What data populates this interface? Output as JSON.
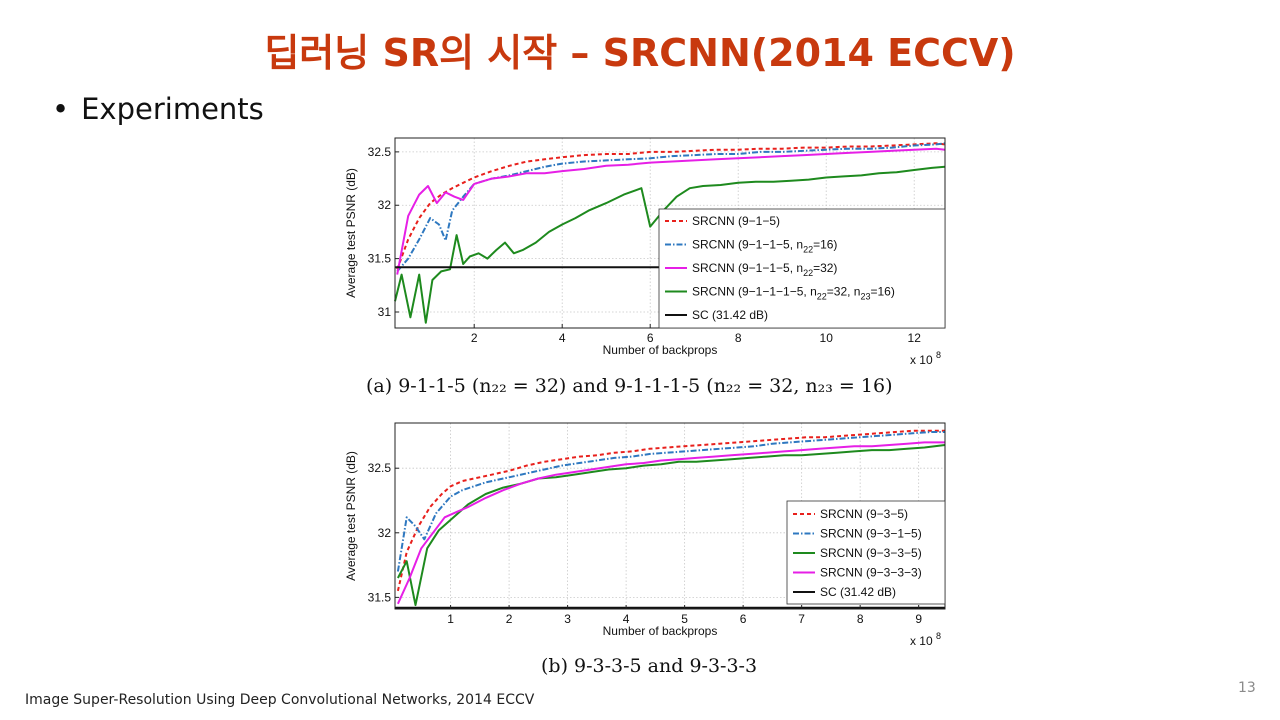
{
  "slide": {
    "title": "딥러닝 SR의 시작 – SRCNN(2014 ECCV)",
    "bullet": "Experiments",
    "footer": "Image Super-Resolution Using Deep Convolutional Networks, 2014 ECCV",
    "page_number": "13"
  },
  "chart_data": [
    {
      "type": "line",
      "caption": "(a) 9-1-1-5 (n₂₂ = 32) and 9-1-1-1-5 (n₂₂ = 32, n₂₃ = 16)",
      "xlabel": "Number of backprops",
      "x_multiplier": "x 10",
      "x_multiplier_exp": "8",
      "ylabel": "Average test PSNR (dB)",
      "xlim": [
        0.2,
        12.7
      ],
      "ylim": [
        30.85,
        32.63
      ],
      "xticks": [
        2,
        4,
        6,
        8,
        10,
        12
      ],
      "yticks": [
        31,
        31.5,
        32,
        32.5
      ],
      "grid": true,
      "legend_position": "right",
      "series": [
        {
          "name": "SRCNN (9−1−5)",
          "legend_label": "SRCNN (9−1−5)",
          "color": "#e8201c",
          "dash": "4,3",
          "x": [
            0.25,
            0.5,
            0.75,
            1.0,
            1.25,
            1.5,
            1.75,
            2.0,
            2.4,
            2.8,
            3.2,
            3.6,
            4.0,
            4.5,
            5.0,
            5.5,
            6.0,
            6.5,
            7.0,
            7.5,
            8.0,
            8.5,
            9.0,
            9.5,
            10.0,
            10.5,
            11.0,
            11.5,
            12.0,
            12.5,
            12.7
          ],
          "values": [
            31.4,
            31.68,
            31.88,
            32.02,
            32.1,
            32.16,
            32.21,
            32.26,
            32.32,
            32.37,
            32.41,
            32.43,
            32.45,
            32.47,
            32.48,
            32.48,
            32.5,
            32.5,
            32.51,
            32.52,
            32.52,
            32.53,
            32.53,
            32.54,
            32.54,
            32.55,
            32.55,
            32.56,
            32.57,
            32.58,
            32.57
          ]
        },
        {
          "name": "SRCNN (9−1−1−5, n22=16)",
          "legend_label": "SRCNN (9−1−1−5, n",
          "legend_sub1": "22",
          "legend_tail1": "=16)",
          "color": "#2e78c0",
          "dash": "6,2,1.5,2",
          "x": [
            0.25,
            0.5,
            0.75,
            1.0,
            1.2,
            1.35,
            1.5,
            1.75,
            2.0,
            2.4,
            2.8,
            3.2,
            3.6,
            4.0,
            4.5,
            5.0,
            5.5,
            6.0,
            6.5,
            7.0,
            7.5,
            8.0,
            8.5,
            9.0,
            9.5,
            10.0,
            10.5,
            11.0,
            11.5,
            12.0,
            12.5,
            12.7
          ],
          "values": [
            31.38,
            31.5,
            31.68,
            31.88,
            31.82,
            31.67,
            31.95,
            32.08,
            32.2,
            32.25,
            32.28,
            32.32,
            32.36,
            32.39,
            32.41,
            32.42,
            32.43,
            32.44,
            32.46,
            32.47,
            32.48,
            32.48,
            32.5,
            32.5,
            32.51,
            32.52,
            32.53,
            32.53,
            32.54,
            32.56,
            32.57,
            32.58
          ]
        },
        {
          "name": "SRCNN (9−1−1−5, n22=32)",
          "legend_label": "SRCNN (9−1−1−5, n",
          "legend_sub1": "22",
          "legend_tail1": "=32)",
          "color": "#e61fe6",
          "dash": "",
          "x": [
            0.25,
            0.5,
            0.75,
            0.95,
            1.15,
            1.35,
            1.55,
            1.75,
            2.0,
            2.4,
            2.8,
            3.2,
            3.6,
            4.0,
            4.5,
            5.0,
            5.5,
            6.0,
            6.5,
            7.0,
            7.5,
            8.0,
            8.5,
            9.0,
            9.5,
            10.0,
            10.5,
            11.0,
            11.5,
            12.0,
            12.5,
            12.7
          ],
          "values": [
            31.35,
            31.9,
            32.1,
            32.18,
            32.02,
            32.12,
            32.08,
            32.05,
            32.2,
            32.25,
            32.27,
            32.3,
            32.3,
            32.32,
            32.34,
            32.37,
            32.38,
            32.4,
            32.41,
            32.42,
            32.43,
            32.44,
            32.45,
            32.46,
            32.47,
            32.48,
            32.49,
            32.5,
            32.51,
            32.52,
            32.53,
            32.52
          ]
        },
        {
          "name": "SRCNN (9−1−1−1−5, n22=32, n23=16)",
          "legend_label": "SRCNN (9−1−1−1−5, n",
          "legend_sub1": "22",
          "legend_tail1": "=32, n",
          "legend_sub2": "23",
          "legend_tail2": "=16)",
          "color": "#1e8a1e",
          "dash": "",
          "x": [
            0.2,
            0.35,
            0.55,
            0.75,
            0.9,
            1.05,
            1.25,
            1.45,
            1.6,
            1.75,
            1.9,
            2.1,
            2.3,
            2.5,
            2.7,
            2.9,
            3.1,
            3.4,
            3.7,
            4.0,
            4.3,
            4.6,
            5.0,
            5.4,
            5.8,
            6.0,
            6.3,
            6.6,
            6.9,
            7.2,
            7.6,
            8.0,
            8.4,
            8.8,
            9.2,
            9.6,
            10.0,
            10.4,
            10.8,
            11.2,
            11.6,
            12.0,
            12.4,
            12.7
          ],
          "values": [
            31.1,
            31.35,
            30.95,
            31.35,
            30.9,
            31.3,
            31.38,
            31.4,
            31.72,
            31.45,
            31.52,
            31.55,
            31.5,
            31.58,
            31.65,
            31.55,
            31.58,
            31.65,
            31.75,
            31.82,
            31.88,
            31.95,
            32.02,
            32.1,
            32.16,
            31.8,
            31.95,
            32.08,
            32.16,
            32.18,
            32.19,
            32.21,
            32.22,
            32.22,
            32.23,
            32.24,
            32.26,
            32.27,
            32.28,
            32.3,
            32.31,
            32.33,
            32.35,
            32.36
          ]
        },
        {
          "name": "SC (31.42 dB)",
          "legend_label": "SC (31.42 dB)",
          "color": "#111111",
          "dash": "",
          "x": [
            0.2,
            12.7
          ],
          "values": [
            31.42,
            31.42
          ]
        }
      ]
    },
    {
      "type": "line",
      "caption": "(b) 9-3-3-5 and 9-3-3-3",
      "xlabel": "Number of backprops",
      "x_multiplier": "x 10",
      "x_multiplier_exp": "8",
      "ylabel": "Average test PSNR (dB)",
      "xlim": [
        0.05,
        9.45
      ],
      "ylim": [
        31.41,
        32.85
      ],
      "xticks": [
        1,
        2,
        3,
        4,
        5,
        6,
        7,
        8,
        9
      ],
      "yticks": [
        31.5,
        32,
        32.5
      ],
      "grid": true,
      "legend_position": "right",
      "series": [
        {
          "name": "SRCNN (9−3−5)",
          "legend_label": "SRCNN (9−3−5)",
          "color": "#e8201c",
          "dash": "4,3",
          "x": [
            0.1,
            0.25,
            0.45,
            0.65,
            0.85,
            1.0,
            1.2,
            1.4,
            1.6,
            1.8,
            2.0,
            2.3,
            2.6,
            2.9,
            3.2,
            3.5,
            3.8,
            4.1,
            4.4,
            4.7,
            5.0,
            5.3,
            5.6,
            5.9,
            6.2,
            6.5,
            6.8,
            7.1,
            7.4,
            7.7,
            8.0,
            8.3,
            8.6,
            8.9,
            9.2,
            9.45
          ],
          "values": [
            31.55,
            31.85,
            32.05,
            32.2,
            32.3,
            32.36,
            32.4,
            32.42,
            32.44,
            32.46,
            32.48,
            32.52,
            32.55,
            32.57,
            32.59,
            32.6,
            32.62,
            32.63,
            32.65,
            32.66,
            32.67,
            32.68,
            32.69,
            32.7,
            32.71,
            32.72,
            32.73,
            32.74,
            32.74,
            32.75,
            32.76,
            32.77,
            32.78,
            32.79,
            32.79,
            32.79
          ]
        },
        {
          "name": "SRCNN (9−3−1−5)",
          "legend_label": "SRCNN (9−3−1−5)",
          "color": "#2e78c0",
          "dash": "6,2,1.5,2",
          "x": [
            0.1,
            0.25,
            0.4,
            0.55,
            0.75,
            1.0,
            1.2,
            1.4,
            1.6,
            1.8,
            2.0,
            2.3,
            2.6,
            2.9,
            3.2,
            3.5,
            3.8,
            4.1,
            4.4,
            4.7,
            5.0,
            5.3,
            5.6,
            5.9,
            6.2,
            6.5,
            6.8,
            7.1,
            7.4,
            7.7,
            8.0,
            8.3,
            8.6,
            8.9,
            9.2,
            9.45
          ],
          "values": [
            31.7,
            32.12,
            32.05,
            31.95,
            32.15,
            32.28,
            32.33,
            32.36,
            32.39,
            32.41,
            32.43,
            32.46,
            32.49,
            32.52,
            32.54,
            32.56,
            32.58,
            32.59,
            32.61,
            32.62,
            32.63,
            32.64,
            32.65,
            32.66,
            32.67,
            32.69,
            32.7,
            32.71,
            32.72,
            32.73,
            32.74,
            32.75,
            32.76,
            32.77,
            32.78,
            32.78
          ]
        },
        {
          "name": "SRCNN (9−3−3−5)",
          "legend_label": "SRCNN (9−3−3−5)",
          "color": "#1e8a1e",
          "dash": "",
          "x": [
            0.1,
            0.25,
            0.4,
            0.6,
            0.8,
            1.0,
            1.3,
            1.6,
            1.9,
            2.2,
            2.5,
            2.8,
            3.1,
            3.4,
            3.7,
            4.0,
            4.3,
            4.6,
            4.9,
            5.2,
            5.5,
            5.8,
            6.1,
            6.4,
            6.7,
            7.0,
            7.3,
            7.6,
            7.9,
            8.2,
            8.5,
            8.8,
            9.1,
            9.45
          ],
          "values": [
            31.65,
            31.78,
            31.44,
            31.88,
            32.02,
            32.1,
            32.22,
            32.3,
            32.35,
            32.38,
            32.42,
            32.43,
            32.45,
            32.47,
            32.49,
            32.5,
            32.52,
            32.53,
            32.55,
            32.55,
            32.56,
            32.57,
            32.58,
            32.59,
            32.6,
            32.6,
            32.61,
            32.62,
            32.63,
            32.64,
            32.64,
            32.65,
            32.66,
            32.68
          ]
        },
        {
          "name": "SRCNN (9−3−3−3)",
          "legend_label": "SRCNN (9−3−3−3)",
          "color": "#e61fe6",
          "dash": "",
          "x": [
            0.1,
            0.3,
            0.5,
            0.7,
            0.9,
            1.1,
            1.3,
            1.6,
            1.9,
            2.2,
            2.5,
            2.8,
            3.1,
            3.4,
            3.7,
            4.0,
            4.3,
            4.6,
            4.9,
            5.2,
            5.5,
            5.8,
            6.1,
            6.4,
            6.7,
            7.0,
            7.3,
            7.6,
            7.9,
            8.2,
            8.5,
            8.8,
            9.1,
            9.45
          ],
          "values": [
            31.45,
            31.65,
            31.88,
            32.0,
            32.12,
            32.16,
            32.2,
            32.27,
            32.33,
            32.38,
            32.42,
            32.45,
            32.47,
            32.49,
            32.51,
            32.53,
            32.54,
            32.56,
            32.57,
            32.58,
            32.59,
            32.6,
            32.61,
            32.62,
            32.63,
            32.64,
            32.65,
            32.66,
            32.67,
            32.67,
            32.68,
            32.69,
            32.7,
            32.7
          ]
        },
        {
          "name": "SC (31.42 dB)",
          "legend_label": "SC (31.42 dB)",
          "color": "#111111",
          "dash": "",
          "x": [
            0.05,
            9.45
          ],
          "values": [
            31.42,
            31.42
          ]
        }
      ]
    }
  ]
}
